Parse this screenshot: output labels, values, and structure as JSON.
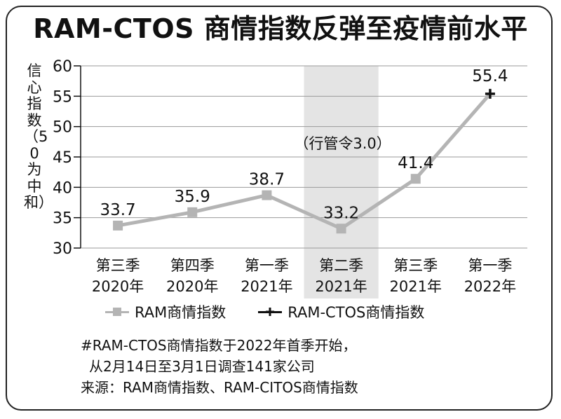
{
  "title": "RAM-CTOS 商情指数反弹至疫情前水平",
  "chart_data": {
    "type": "line",
    "categories": [
      [
        "第三季",
        "2020年"
      ],
      [
        "第四季",
        "2020年"
      ],
      [
        "第一季",
        "2021年"
      ],
      [
        "第二季",
        "2021年"
      ],
      [
        "第三季",
        "2021年"
      ],
      [
        "第一季",
        "2022年"
      ]
    ],
    "ylabel": "信心指数（50为中和）",
    "ylim": [
      30,
      60
    ],
    "yticks": [
      30,
      35,
      40,
      45,
      50,
      55,
      60
    ],
    "grid": true,
    "shaded_region": {
      "category_index": 3,
      "label": "（行管令3.0）"
    },
    "series": [
      {
        "name": "RAM商情指数",
        "color": "#b4b4b4",
        "marker": "square",
        "values": [
          33.7,
          35.9,
          38.7,
          33.2,
          41.4,
          null
        ],
        "labels": [
          "33.7",
          "35.9",
          "38.7",
          "33.2",
          "41.4",
          null
        ]
      },
      {
        "name": "RAM-CTOS商情指数",
        "color": "#111111",
        "marker": "plus",
        "values": [
          null,
          null,
          null,
          null,
          null,
          55.4
        ],
        "labels": [
          null,
          null,
          null,
          null,
          null,
          "55.4"
        ]
      }
    ],
    "connector": {
      "from_index": 4,
      "to_index": 5,
      "color": "#b4b4b4"
    },
    "legend_position": "bottom"
  },
  "notes": [
    "#RAM-CTOS商情指数于2022年首季开始，",
    "从2月14日至3月1日调查141家公司",
    "来源：RAM商情指数、RAM-CITOS商情指数"
  ]
}
